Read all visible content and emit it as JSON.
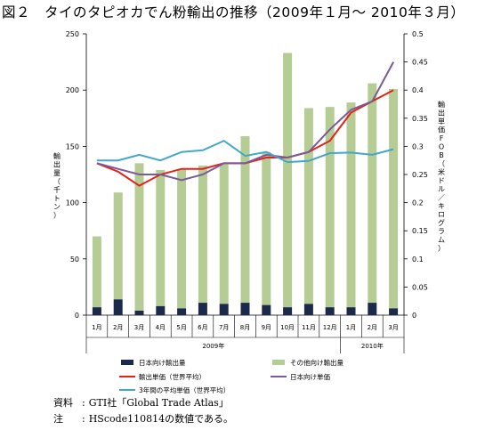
{
  "figure": {
    "number": "図２",
    "title": "タイのタピオカでん粉輸出の推移（2009年１月～ 2010年３月）"
  },
  "notes": [
    {
      "label": "資料",
      "text": "GTI社「Global Trade Atlas」"
    },
    {
      "label": "注",
      "text": "HScode110814の数値である。"
    }
  ],
  "chart_data": {
    "type": "bar",
    "ylabel_left": "輸出量（千トン）",
    "ylabel_right": "輸出単価FOB（米ドル／キログラム）",
    "ylim_left": [
      0,
      250
    ],
    "yticks_left": [
      "0",
      "50",
      "100",
      "150",
      "200",
      "250"
    ],
    "ylim_right": [
      0,
      0.5
    ],
    "yticks_right": [
      "0",
      "0.05",
      "0.1",
      "0.15",
      "0.2",
      "0.25",
      "0.3",
      "0.35",
      "0.4",
      "0.45",
      "0.5"
    ],
    "categories": [
      "1月",
      "2月",
      "3月",
      "4月",
      "5月",
      "6月",
      "7月",
      "8月",
      "9月",
      "10月",
      "11月",
      "12月",
      "1月",
      "2月",
      "3月"
    ],
    "year_groups": [
      {
        "label": "2009年",
        "months": 12
      },
      {
        "label": "2010年",
        "months": 3
      }
    ],
    "stacked_bars": [
      {
        "name": "日本向け輸出量",
        "color": "#1b2a4a",
        "values": [
          7,
          14,
          4,
          8,
          6,
          11,
          10,
          11,
          9,
          7,
          10,
          7,
          7,
          11,
          6
        ]
      },
      {
        "name": "その他向け輸出量",
        "color": "#b5cc95",
        "values": [
          63,
          95,
          131,
          121,
          124,
          122,
          124,
          148,
          136,
          226,
          174,
          178,
          182,
          195,
          195
        ]
      }
    ],
    "lines": [
      {
        "name": "輸出単価（世界平均）",
        "color": "#e32219",
        "values": [
          0.27,
          0.255,
          0.23,
          0.25,
          0.26,
          0.26,
          0.27,
          0.27,
          0.28,
          0.28,
          0.29,
          0.31,
          0.36,
          0.38,
          0.4
        ]
      },
      {
        "name": "日本向け単価",
        "color": "#7a5a9a",
        "values": [
          0.27,
          0.26,
          0.25,
          0.25,
          0.24,
          0.25,
          0.27,
          0.27,
          0.285,
          0.28,
          0.29,
          0.33,
          0.365,
          0.38,
          0.45
        ]
      },
      {
        "name": "3年間の平均単価（世界平均）",
        "color": "#44a6c8",
        "values": [
          0.275,
          0.275,
          0.285,
          0.275,
          0.29,
          0.293,
          0.31,
          0.283,
          0.29,
          0.272,
          0.274,
          0.288,
          0.289,
          0.285,
          0.295
        ]
      }
    ],
    "grid": false,
    "legend_position": "bottom"
  }
}
